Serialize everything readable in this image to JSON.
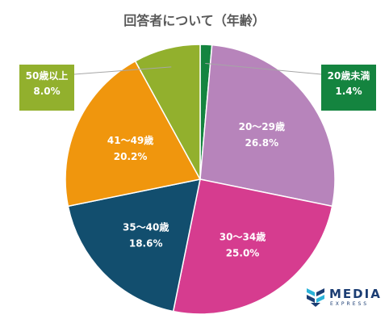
{
  "chart_data": {
    "type": "pie",
    "title": "回答者について（年齢）",
    "categories": [
      "20歳未満",
      "20～29歳",
      "30～34歳",
      "35～40歳",
      "41～49歳",
      "50歳以上"
    ],
    "values": [
      1.4,
      26.8,
      25.0,
      18.6,
      20.2,
      8.0
    ],
    "value_labels": [
      "1.4%",
      "26.8%",
      "25.0%",
      "18.6%",
      "20.2%",
      "8.0%"
    ],
    "colors": [
      "#14843f",
      "#b784bb",
      "#d63c8f",
      "#124e6e",
      "#f0960d",
      "#92b02d"
    ],
    "legend": "none",
    "label_placement": "inside slices; callout boxes for 20歳未満 and 50歳以上"
  },
  "logo": {
    "name": "MEDIA",
    "sub": "EXPRESS",
    "color": "#1b3d73",
    "accent": "#2bb3d9",
    "icon": "media-express-logo-icon"
  }
}
